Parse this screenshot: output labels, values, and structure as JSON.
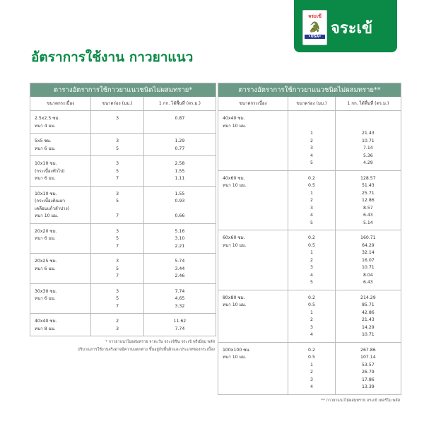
{
  "brand": {
    "name": "จระเข้",
    "badge_text": "จระเข้",
    "badge_usa": "•USA•"
  },
  "title": "อัตราการใช้งาน กาวยาแนว",
  "left": {
    "heading": "ตารางอัตราการใช้กาวยาแนวชนิดไม่ผสมทราย*",
    "columns": [
      "ขนาดกระเบื้อง",
      "ขนาดร่อง (มม.)",
      "1 กก. ได้พื้นที่ (ตร.ม.)"
    ],
    "groups": [
      {
        "tile": [
          "2.5x2.5 ซม.",
          "หนา 4 มม."
        ],
        "joint": [
          "3"
        ],
        "area": [
          "0.87"
        ]
      },
      {
        "tile": [
          "5x5 ซม.",
          "หนา 6 มม."
        ],
        "joint": [
          "3",
          "5"
        ],
        "area": [
          "1.29",
          "0.77"
        ]
      },
      {
        "tile": [
          "10x10 ซม.",
          "(กระเบื้องทั่วไป)",
          "หนา 6 มม."
        ],
        "joint": [
          "3",
          "5",
          "7"
        ],
        "area": [
          "2.58",
          "1.55",
          "1.11"
        ]
      },
      {
        "tile": [
          "10x10 ซม.",
          "(กระเบื้องดินเผา",
          "เคลือบแก้วลำปาง)",
          "หนา 10 มม."
        ],
        "joint": [
          "3",
          "5",
          "",
          "7"
        ],
        "area": [
          "1.55",
          "0.93",
          "",
          "0.66"
        ]
      },
      {
        "tile": [
          "20x20 ซม.",
          "หนา 6 มม."
        ],
        "joint": [
          "3",
          "5",
          "7"
        ],
        "area": [
          "5.16",
          "3.10",
          "2.21"
        ]
      },
      {
        "tile": [
          "20x25 ซม.",
          "หนา 6 มม."
        ],
        "joint": [
          "3",
          "5",
          "7"
        ],
        "area": [
          "5.74",
          "3.44",
          "2.46"
        ]
      },
      {
        "tile": [
          "30x30 ซม.",
          "หนา 6 มม."
        ],
        "joint": [
          "3",
          "5",
          "7"
        ],
        "area": [
          "7.74",
          "4.65",
          "3.32"
        ]
      },
      {
        "tile": [
          "40x40 ซม.",
          "หนา 8 มม."
        ],
        "joint": [
          "2",
          "3"
        ],
        "area": [
          "11.62",
          "7.74"
        ]
      }
    ],
    "footnote": [
      "* กาวยาแนวไม่ผสมทราย จาละวัน จระเข้ชิน จระเข้ พรีเมี่ยม พลัส",
      "ปริมาณการใช้งานจริงอาจมีความแตกต่าง ขึ้นอยู่กับพื้นผิวและประเภทของกระเบื้อง"
    ]
  },
  "right": {
    "heading": "ตารางอัตราการใช้กาวยาแนวชนิดไม่ผสมทราย**",
    "columns": [
      "ขนาดกระเบื้อง",
      "ขนาดร่อง (มม.)",
      "1 กก. ได้พื้นที่ (ตร.ม.)"
    ],
    "groups": [
      {
        "tile": [
          "40x40 ซม.",
          "หนา 10 มม."
        ],
        "joint": [
          "",
          "",
          "1",
          "2",
          "3",
          "4",
          "5"
        ],
        "area": [
          "",
          "",
          "21.43",
          "10.71",
          "7.14",
          "5.36",
          "4.29"
        ]
      },
      {
        "tile": [
          "40x60 ซม.",
          "หนา 10 มม."
        ],
        "joint": [
          "0.2",
          "0.5",
          "1",
          "2",
          "3",
          "4",
          "5"
        ],
        "area": [
          "128.57",
          "51.43",
          "25.71",
          "12.86",
          "8.57",
          "6.43",
          "5.14"
        ]
      },
      {
        "tile": [
          "60x60 ซม.",
          "หนา 10 มม."
        ],
        "joint": [
          "0.2",
          "0.5",
          "1",
          "2",
          "3",
          "4",
          "5"
        ],
        "area": [
          "160.71",
          "64.29",
          "32.14",
          "16.07",
          "10.71",
          "8.04",
          "6.43"
        ]
      },
      {
        "tile": [
          "80x80 ซม.",
          "หนา 10 มม."
        ],
        "joint": [
          "0.2",
          "0.5",
          "1",
          "2",
          "3",
          "4"
        ],
        "area": [
          "214.29",
          "85.71",
          "42.86",
          "21.43",
          "14.29",
          "10.71"
        ]
      },
      {
        "tile": [
          "100x100 ซม.",
          "หนา 10 มม."
        ],
        "joint": [
          "0.2",
          "0.5",
          "1",
          "2",
          "3",
          "4"
        ],
        "area": [
          "267.86",
          "107.14",
          "53.57",
          "26.79",
          "17.86",
          "13.39"
        ]
      }
    ],
    "footnote": [
      "** กาวยาแนวไม่ผสมทราย จระเข้ เทอร์โม พลัส"
    ]
  },
  "colors": {
    "brand_green": "#0a8a46",
    "header_green": "#6b9a86",
    "badge_red": "#d4231f",
    "badge_blue": "#283a8f"
  }
}
